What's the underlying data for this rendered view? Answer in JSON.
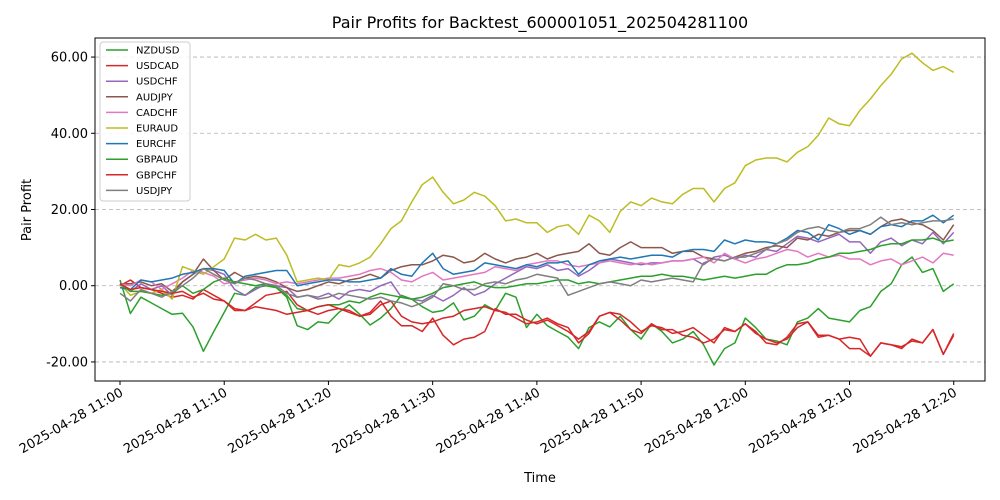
{
  "chart_data": {
    "type": "line",
    "title": "Pair Profits for Backtest_600001051_202504281100",
    "xlabel": "Time",
    "ylabel": "Pair Profit",
    "xlim": [
      -2.4,
      83
    ],
    "ylim": [
      -25,
      65
    ],
    "grid": "y-only, dashed",
    "legend_position": "upper-left",
    "x_tick_values": [
      0,
      10,
      20,
      30,
      40,
      50,
      60,
      70,
      80
    ],
    "x_tick_labels": [
      "2025-04-28 11:00",
      "2025-04-28 11:10",
      "2025-04-28 11:20",
      "2025-04-28 11:30",
      "2025-04-28 11:40",
      "2025-04-28 11:50",
      "2025-04-28 12:00",
      "2025-04-28 12:10",
      "2025-04-28 12:20"
    ],
    "y_tick_values": [
      -20,
      0,
      20,
      40,
      60
    ],
    "y_tick_labels": [
      "-20.00",
      "0.00",
      "20.00",
      "40.00",
      "60.00"
    ],
    "series": [
      {
        "name": "NZDUSD",
        "color": "#2ca02c",
        "values": [
          1.5,
          -7.3,
          -3.0,
          -4.5,
          -6.0,
          -7.5,
          -7.2,
          -10.8,
          -17.2,
          -12.0,
          -7.0,
          -2.0,
          -2.5,
          -0.5,
          0.0,
          -0.5,
          -3.0,
          -10.5,
          -11.5,
          -9.5,
          -9.8,
          -7.0,
          -5.0,
          -7.5,
          -10.3,
          -8.5,
          -6.0,
          -2.5,
          -3.5,
          -5.5,
          -7.0,
          -6.5,
          -4.5,
          -9.0,
          -8.0,
          -5.0,
          -6.5,
          -2.0,
          -3.0,
          -11.0,
          -7.5,
          -10.5,
          -12.0,
          -13.5,
          -16.5,
          -11.0,
          -9.5,
          -10.8,
          -8.0,
          -11.5,
          -14.0,
          -10.0,
          -12.0,
          -15.0,
          -14.0,
          -12.0,
          -15.5,
          -20.8,
          -16.5,
          -15.0,
          -8.5,
          -11.0,
          -14.0,
          -14.5,
          -15.5,
          -9.5,
          -8.5,
          -6.0,
          -8.5,
          -9.0,
          -9.5,
          -6.5,
          -5.5,
          -1.5,
          0.5,
          5.5,
          7.5,
          3.5,
          4.5,
          -1.5,
          0.5
        ]
      },
      {
        "name": "USDCAD",
        "color": "#d62728",
        "values": [
          0.0,
          1.5,
          -0.5,
          -1.0,
          -2.0,
          -3.0,
          -2.5,
          -3.5,
          -1.0,
          -2.5,
          -4.0,
          -6.0,
          -6.5,
          -4.5,
          -2.5,
          -2.0,
          -1.5,
          -5.0,
          -6.5,
          -7.5,
          -6.5,
          -6.0,
          -7.0,
          -8.0,
          -7.5,
          -5.0,
          -4.0,
          -8.0,
          -9.5,
          -10.0,
          -9.5,
          -8.5,
          -8.0,
          -6.5,
          -6.0,
          -5.5,
          -6.5,
          -7.0,
          -8.5,
          -10.0,
          -9.5,
          -8.5,
          -10.0,
          -11.0,
          -15.0,
          -12.5,
          -8.0,
          -7.0,
          -7.5,
          -9.5,
          -12.0,
          -10.5,
          -11.0,
          -12.5,
          -12.0,
          -11.0,
          -13.0,
          -15.0,
          -11.0,
          -12.0,
          -10.0,
          -12.0,
          -15.0,
          -15.5,
          -13.5,
          -10.0,
          -9.5,
          -13.0,
          -13.0,
          -14.0,
          -16.5,
          -16.5,
          -18.5,
          -15.0,
          -15.5,
          -16.5,
          -14.0,
          -15.0,
          -11.5,
          -18.0,
          -12.5
        ]
      },
      {
        "name": "USDCHF",
        "color": "#9467bd",
        "values": [
          0.5,
          -1.5,
          0.5,
          -1.0,
          0.0,
          -2.5,
          1.0,
          3.0,
          4.5,
          4.0,
          3.0,
          -1.0,
          -2.5,
          -1.0,
          0.5,
          0.0,
          -0.5,
          -3.0,
          -2.5,
          -3.0,
          -2.0,
          -3.5,
          -1.5,
          -1.0,
          -1.5,
          0.0,
          1.0,
          -3.0,
          -3.5,
          -4.0,
          -2.5,
          -4.0,
          -2.5,
          -0.5,
          -2.5,
          -1.5,
          0.5,
          2.0,
          3.5,
          5.0,
          4.5,
          5.5,
          4.0,
          4.5,
          2.5,
          4.0,
          6.0,
          7.0,
          6.5,
          6.0,
          5.5,
          6.0,
          6.0,
          6.5,
          6.5,
          7.0,
          5.5,
          7.5,
          8.0,
          7.0,
          8.0,
          7.5,
          9.5,
          9.0,
          11.0,
          13.0,
          12.5,
          11.5,
          12.5,
          13.5,
          11.5,
          11.5,
          8.5,
          11.5,
          12.5,
          10.5,
          12.0,
          11.0,
          14.0,
          11.0,
          14.0
        ]
      },
      {
        "name": "AUDJPY",
        "color": "#8c564b",
        "values": [
          0.5,
          0.5,
          1.0,
          0.0,
          0.5,
          -1.5,
          1.0,
          3.0,
          7.0,
          4.0,
          1.5,
          3.5,
          2.0,
          2.5,
          2.0,
          1.0,
          -0.5,
          -1.5,
          -1.0,
          0.0,
          1.0,
          0.5,
          1.5,
          2.0,
          3.0,
          2.0,
          4.0,
          5.0,
          5.5,
          5.5,
          6.5,
          8.0,
          7.5,
          6.0,
          6.5,
          8.5,
          7.0,
          6.0,
          7.0,
          7.5,
          8.5,
          7.0,
          8.0,
          8.5,
          9.0,
          11.0,
          8.5,
          8.0,
          10.0,
          11.5,
          10.0,
          10.0,
          10.0,
          8.5,
          9.0,
          9.0,
          7.5,
          7.0,
          6.5,
          7.5,
          8.5,
          9.0,
          10.0,
          10.5,
          10.0,
          12.5,
          12.0,
          13.5,
          13.0,
          14.0,
          14.5,
          14.5,
          13.5,
          15.5,
          17.0,
          17.5,
          16.5,
          16.0,
          14.5,
          12.0,
          16.0
        ]
      },
      {
        "name": "CADCHF",
        "color": "#e377c2",
        "values": [
          0.5,
          0.0,
          1.5,
          1.0,
          -1.0,
          0.5,
          2.0,
          4.0,
          3.5,
          2.5,
          0.5,
          1.0,
          1.5,
          2.0,
          1.5,
          0.5,
          1.0,
          0.5,
          1.0,
          1.5,
          2.0,
          2.0,
          2.5,
          3.0,
          4.0,
          4.5,
          3.5,
          1.5,
          1.0,
          2.5,
          3.5,
          1.5,
          2.0,
          2.5,
          3.0,
          3.5,
          5.0,
          4.5,
          4.0,
          5.5,
          6.0,
          6.5,
          6.5,
          5.5,
          5.0,
          5.5,
          6.0,
          6.5,
          6.0,
          5.5,
          6.0,
          5.5,
          6.0,
          6.5,
          6.5,
          7.0,
          7.5,
          6.0,
          8.5,
          7.0,
          6.0,
          7.0,
          7.5,
          8.5,
          9.5,
          9.0,
          7.5,
          8.5,
          7.5,
          8.0,
          7.0,
          7.0,
          5.5,
          6.5,
          7.0,
          5.5,
          6.5,
          7.5,
          6.0,
          8.5,
          8.0
        ]
      },
      {
        "name": "EURAUD",
        "color": "#bcbd22",
        "values": [
          0.5,
          -2.5,
          -1.5,
          -2.0,
          -1.0,
          -3.5,
          5.0,
          4.0,
          3.0,
          5.0,
          7.0,
          12.5,
          12.0,
          13.5,
          12.0,
          12.5,
          8.0,
          1.0,
          1.5,
          2.0,
          1.5,
          5.5,
          5.0,
          6.0,
          7.5,
          11.0,
          15.0,
          17.0,
          22.0,
          26.5,
          28.5,
          24.5,
          21.5,
          22.5,
          24.5,
          23.5,
          21.0,
          17.0,
          17.5,
          16.5,
          16.5,
          14.0,
          15.5,
          16.0,
          13.5,
          18.5,
          17.0,
          14.0,
          19.5,
          22.0,
          21.0,
          23.0,
          22.0,
          21.5,
          24.0,
          25.5,
          25.5,
          22.0,
          25.5,
          27.0,
          31.5,
          33.0,
          33.5,
          33.5,
          32.5,
          35.0,
          36.5,
          39.5,
          44.0,
          42.5,
          42.0,
          46.0,
          49.0,
          52.5,
          55.5,
          59.5,
          61.0,
          58.5,
          56.5,
          57.5,
          56.0
        ]
      },
      {
        "name": "EURCHF",
        "color": "#1f77b4",
        "values": [
          -0.5,
          -1.0,
          1.5,
          1.0,
          1.5,
          2.0,
          3.0,
          3.5,
          4.5,
          4.5,
          4.0,
          0.5,
          2.5,
          3.0,
          3.5,
          4.0,
          4.0,
          0.0,
          0.5,
          1.0,
          1.5,
          1.5,
          1.0,
          1.0,
          1.5,
          2.0,
          4.5,
          3.0,
          2.5,
          6.0,
          8.5,
          4.5,
          3.0,
          3.5,
          4.0,
          6.0,
          5.5,
          5.0,
          4.5,
          5.5,
          5.0,
          6.0,
          6.0,
          6.5,
          3.0,
          5.5,
          6.5,
          7.0,
          7.5,
          7.0,
          7.5,
          8.0,
          8.0,
          7.5,
          9.0,
          9.5,
          9.5,
          9.0,
          12.0,
          11.0,
          12.0,
          11.5,
          11.5,
          11.0,
          12.5,
          14.5,
          14.0,
          12.0,
          16.0,
          15.0,
          13.5,
          14.5,
          13.5,
          15.5,
          16.0,
          15.5,
          17.0,
          17.0,
          18.5,
          16.5,
          18.5
        ]
      },
      {
        "name": "GBPAUD",
        "color": "#2ca02c",
        "values": [
          0.5,
          -1.5,
          -1.5,
          -2.0,
          -2.5,
          -2.0,
          0.0,
          -2.0,
          -1.0,
          1.0,
          2.0,
          1.0,
          0.5,
          0.0,
          0.5,
          -0.5,
          -2.5,
          -6.0,
          -6.5,
          -5.5,
          -5.0,
          -5.0,
          -4.0,
          -4.5,
          -3.0,
          -2.0,
          -2.5,
          -3.0,
          -3.5,
          -3.0,
          -2.0,
          -0.5,
          0.0,
          0.5,
          1.0,
          0.0,
          -0.5,
          -0.5,
          0.0,
          0.5,
          0.5,
          1.0,
          1.5,
          1.5,
          0.5,
          1.0,
          0.5,
          1.0,
          1.5,
          2.0,
          2.5,
          2.5,
          3.0,
          2.5,
          2.5,
          2.0,
          1.5,
          2.0,
          2.5,
          2.0,
          2.5,
          3.0,
          3.0,
          4.5,
          5.5,
          5.5,
          6.0,
          7.0,
          7.5,
          8.5,
          8.5,
          9.0,
          9.5,
          10.5,
          11.0,
          11.0,
          12.0,
          12.0,
          12.5,
          11.5,
          12.0
        ]
      },
      {
        "name": "GBPCHF",
        "color": "#d62728",
        "values": [
          0.5,
          -1.0,
          -0.5,
          -1.0,
          -1.5,
          -2.0,
          -1.5,
          -3.0,
          -2.0,
          -3.5,
          -4.0,
          -6.5,
          -6.5,
          -5.5,
          -6.0,
          -6.5,
          -7.5,
          -7.0,
          -6.5,
          -5.5,
          -5.0,
          -6.0,
          -6.5,
          -8.0,
          -7.0,
          -4.0,
          -8.0,
          -10.5,
          -10.5,
          -12.0,
          -8.5,
          -13.0,
          -15.5,
          -14.0,
          -13.5,
          -12.0,
          -6.0,
          -7.5,
          -7.5,
          -9.0,
          -10.0,
          -9.0,
          -10.5,
          -12.0,
          -14.0,
          -12.0,
          -8.0,
          -7.0,
          -9.0,
          -11.5,
          -12.5,
          -10.0,
          -11.5,
          -11.5,
          -13.0,
          -13.5,
          -15.0,
          -14.0,
          -11.5,
          -12.0,
          -10.0,
          -12.5,
          -14.0,
          -15.0,
          -14.0,
          -11.0,
          -9.5,
          -13.5,
          -13.0,
          -14.0,
          -13.5,
          -14.0,
          -18.5,
          -15.0,
          -15.5,
          -16.0,
          -14.5,
          -15.0,
          -11.5,
          -18.0,
          -13.0
        ]
      },
      {
        "name": "USDJPY",
        "color": "#7f7f7f",
        "values": [
          -2.0,
          -4.0,
          -1.0,
          -2.0,
          -3.0,
          -1.5,
          0.0,
          2.0,
          4.5,
          3.0,
          1.5,
          0.5,
          2.0,
          1.5,
          0.5,
          0.0,
          -2.0,
          -3.0,
          -2.5,
          -3.5,
          -3.0,
          -2.0,
          -2.5,
          -3.0,
          -3.5,
          -3.0,
          -4.0,
          -4.5,
          -5.5,
          -4.5,
          -3.0,
          0.5,
          0.0,
          -1.0,
          -1.0,
          0.5,
          1.0,
          0.5,
          1.5,
          2.0,
          3.0,
          2.5,
          2.0,
          -2.5,
          -1.5,
          -0.5,
          0.5,
          1.0,
          0.5,
          0.0,
          1.5,
          1.0,
          1.5,
          2.0,
          1.5,
          1.0,
          6.0,
          7.0,
          6.5,
          7.5,
          7.5,
          8.5,
          9.5,
          11.0,
          12.0,
          14.0,
          15.0,
          15.5,
          14.5,
          14.0,
          15.0,
          15.0,
          16.0,
          18.0,
          16.0,
          16.5,
          16.0,
          16.5,
          17.0,
          17.0,
          17.5
        ]
      }
    ]
  }
}
